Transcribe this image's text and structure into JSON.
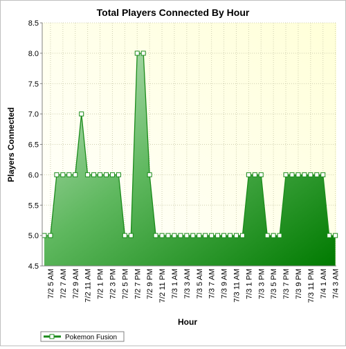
{
  "chart_data": {
    "type": "area",
    "title": "Total Players Connected By Hour",
    "xlabel": "Hour",
    "ylabel": "Players Connected",
    "ylim": [
      4.5,
      8.5
    ],
    "yticks": [
      "4.5",
      "5.0",
      "5.5",
      "6.0",
      "6.5",
      "7.0",
      "7.5",
      "8.0",
      "8.5"
    ],
    "x": [
      "7/2 4 AM",
      "7/2 5 AM",
      "7/2 6 AM",
      "7/2 7 AM",
      "7/2 8 AM",
      "7/2 9 AM",
      "7/2 10 AM",
      "7/2 11 AM",
      "7/2 12 PM",
      "7/2 1 PM",
      "7/2 2 PM",
      "7/2 3 PM",
      "7/2 4 PM",
      "7/2 5 PM",
      "7/2 6 PM",
      "7/2 7 PM",
      "7/2 8 PM",
      "7/2 9 PM",
      "7/2 10 PM",
      "7/2 11 PM",
      "7/3 12 AM",
      "7/3 1 AM",
      "7/3 2 AM",
      "7/3 3 AM",
      "7/3 4 AM",
      "7/3 5 AM",
      "7/3 6 AM",
      "7/3 7 AM",
      "7/3 8 AM",
      "7/3 9 AM",
      "7/3 10 AM",
      "7/3 11 AM",
      "7/3 12 PM",
      "7/3 1 PM",
      "7/3 2 PM",
      "7/3 3 PM",
      "7/3 4 PM",
      "7/3 5 PM",
      "7/3 6 PM",
      "7/3 7 PM",
      "7/3 8 PM",
      "7/3 9 PM",
      "7/3 10 PM",
      "7/3 11 PM",
      "7/4 12 AM",
      "7/4 1 AM",
      "7/4 2 AM",
      "7/4 3 AM"
    ],
    "xtick_labels": [
      "7/2 5 AM",
      "7/2 7 AM",
      "7/2 9 AM",
      "7/2 11 AM",
      "7/2 1 PM",
      "7/2 3 PM",
      "7/2 5 PM",
      "7/2 7 PM",
      "7/2 9 PM",
      "7/2 11 PM",
      "7/3 1 AM",
      "7/3 3 AM",
      "7/3 5 AM",
      "7/3 7 AM",
      "7/3 9 AM",
      "7/3 11 AM",
      "7/3 1 PM",
      "7/3 3 PM",
      "7/3 5 PM",
      "7/3 7 PM",
      "7/3 9 PM",
      "7/3 11 PM",
      "7/4 1 AM",
      "7/4 3 AM"
    ],
    "series": [
      {
        "name": "Pokemon Fusion",
        "values": [
          5,
          5,
          6,
          6,
          6,
          6,
          7,
          6,
          6,
          6,
          6,
          6,
          6,
          5,
          5,
          8,
          8,
          6,
          5,
          5,
          5,
          5,
          5,
          5,
          5,
          5,
          5,
          5,
          5,
          5,
          5,
          5,
          5,
          6,
          6,
          6,
          5,
          5,
          5,
          6,
          6,
          6,
          6,
          6,
          6,
          6,
          5,
          5
        ]
      }
    ],
    "grid": true,
    "legend": "bottom-left",
    "colors": {
      "line": "#1a8a1a",
      "fill_light": "#b8dcb8",
      "fill_dark": "#0a7a0a",
      "plot_bg_light": "#ffffe0",
      "plot_bg_white": "#ffffff",
      "grid": "#c8c8a8"
    }
  }
}
